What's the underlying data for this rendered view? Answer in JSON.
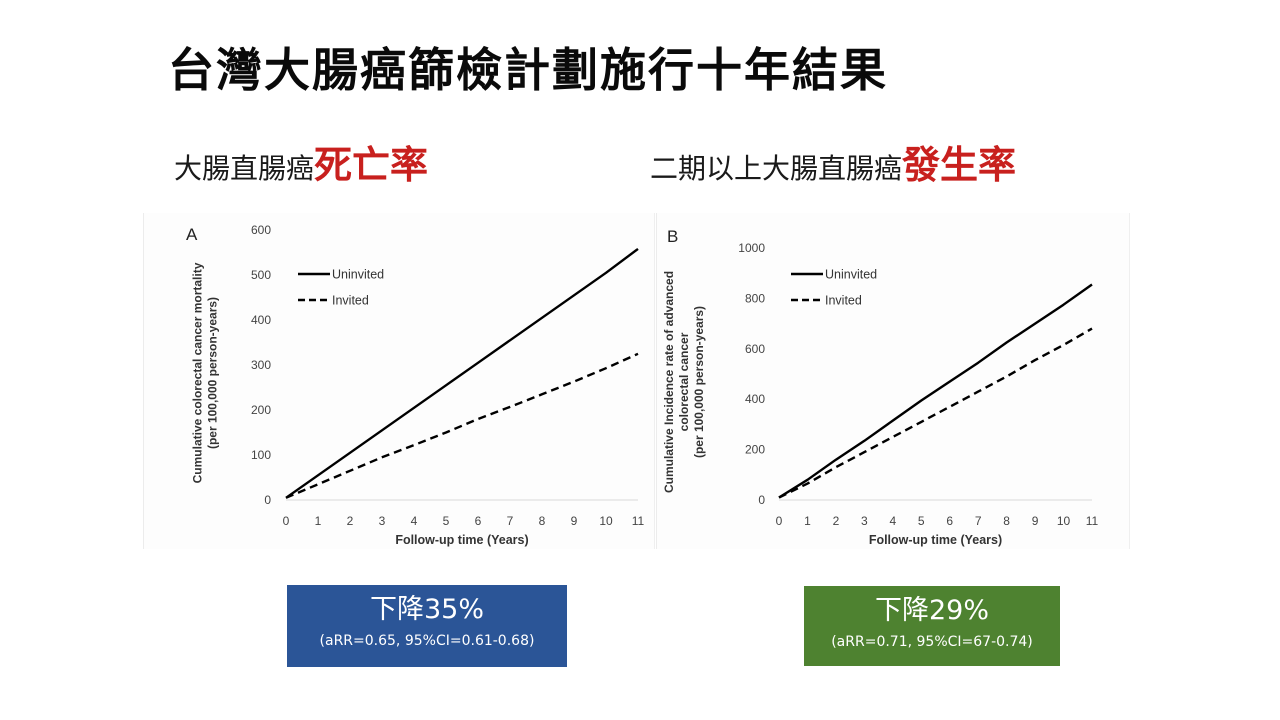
{
  "title": "台灣大腸癌篩檢計劃施行十年結果",
  "subtitles": {
    "left": {
      "prefix": "大腸直腸癌",
      "highlight": "死亡率"
    },
    "right": {
      "prefix": "二期以上大腸直腸癌",
      "highlight": "發生率"
    }
  },
  "colors": {
    "highlight_red": "#c8201e",
    "badge_blue": "#2b5597",
    "badge_green": "#4e8230"
  },
  "badges": {
    "left": {
      "headline": "下降35%",
      "detail": "(aRR=0.65, 95%CI=0.61-0.68)"
    },
    "right": {
      "headline": "下降29%",
      "detail": "(aRR=0.71, 95%CI=67-0.74)"
    }
  },
  "chart_data": [
    {
      "type": "line",
      "panel_label": "A",
      "title": "",
      "xlabel": "Follow-up time (Years)",
      "ylabel": "Cumulative colorectal cancer mortality (per 100,000 person-years)",
      "ylabel_lines": [
        "Cumulative colorectal cancer  mortality",
        "(per 100,000 person-years)"
      ],
      "x": [
        0,
        1,
        2,
        3,
        4,
        5,
        6,
        7,
        8,
        9,
        10,
        11
      ],
      "x_ticks": [
        "0",
        "1",
        "2",
        "3",
        "4",
        "5",
        "6",
        "7",
        "8",
        "9",
        "10",
        "11"
      ],
      "y_ticks": [
        "0",
        "100",
        "200",
        "300",
        "400",
        "500",
        "600"
      ],
      "xlim": [
        0,
        11
      ],
      "ylim": [
        0,
        600
      ],
      "grid": false,
      "legend_position": "upper-left",
      "series": [
        {
          "name": "Uninvited",
          "style": "solid",
          "values": [
            5,
            55,
            105,
            155,
            205,
            255,
            305,
            355,
            405,
            455,
            505,
            558
          ]
        },
        {
          "name": "Invited",
          "style": "dashed",
          "values": [
            5,
            35,
            65,
            95,
            122,
            150,
            180,
            207,
            235,
            263,
            293,
            325
          ]
        }
      ]
    },
    {
      "type": "line",
      "panel_label": "B",
      "title": "",
      "xlabel": "Follow-up time (Years)",
      "ylabel": "Cumulative Incidence rate of advanced colorectal cancer (per 100,000 person-years)",
      "ylabel_lines": [
        "Cumulative Incidence rate of advanced",
        "colorectal cancer",
        "(per 100,000 person-years)"
      ],
      "x": [
        0,
        1,
        2,
        3,
        4,
        5,
        6,
        7,
        8,
        9,
        10,
        11
      ],
      "x_ticks": [
        "0",
        "1",
        "2",
        "3",
        "4",
        "5",
        "6",
        "7",
        "8",
        "9",
        "10",
        "11"
      ],
      "y_ticks": [
        "0",
        "200",
        "400",
        "600",
        "800",
        "1000"
      ],
      "xlim": [
        0,
        11
      ],
      "ylim": [
        0,
        1000
      ],
      "grid": false,
      "legend_position": "upper-left",
      "series": [
        {
          "name": "Uninvited",
          "style": "solid",
          "values": [
            10,
            80,
            160,
            235,
            315,
            395,
            470,
            545,
            625,
            700,
            775,
            855
          ]
        },
        {
          "name": "Invited",
          "style": "dashed",
          "values": [
            10,
            65,
            130,
            190,
            250,
            310,
            370,
            430,
            490,
            555,
            615,
            680
          ]
        }
      ]
    }
  ]
}
